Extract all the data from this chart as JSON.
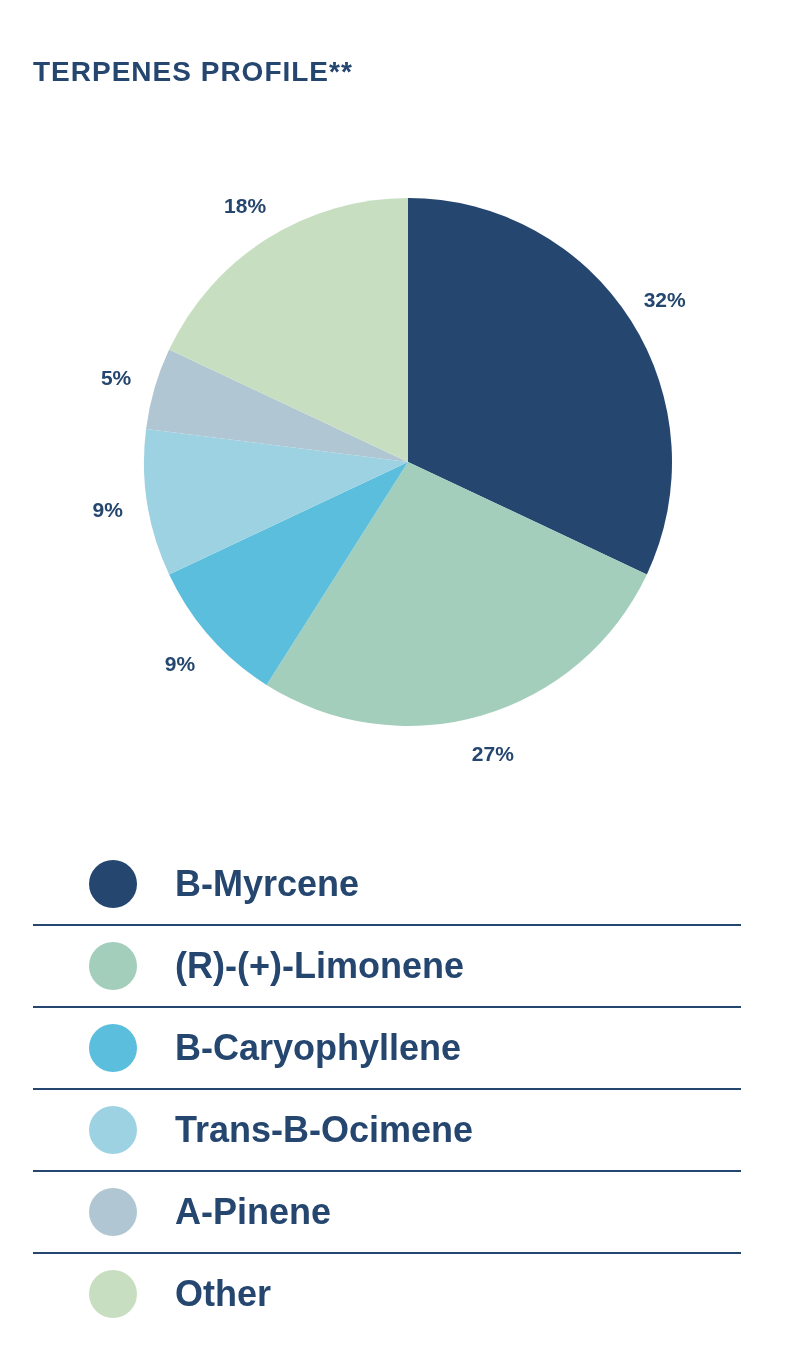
{
  "chart_data": {
    "type": "pie",
    "title": "TERPENES PROFILE**",
    "categories": [
      "B-Myrcene",
      "(R)-(+)-Limonene",
      "B-Caryophyllene",
      "Trans-B-Ocimene",
      "A-Pinene",
      "Other"
    ],
    "values": [
      32,
      27,
      9,
      9,
      5,
      18
    ],
    "value_labels": [
      "32%",
      "27%",
      "9%",
      "9%",
      "5%",
      "18%"
    ],
    "colors": [
      "#25466f",
      "#a3cebb",
      "#5bbedd",
      "#9dd2e2",
      "#b0c7d3",
      "#c7dfc0"
    ],
    "legend": "bottom"
  }
}
